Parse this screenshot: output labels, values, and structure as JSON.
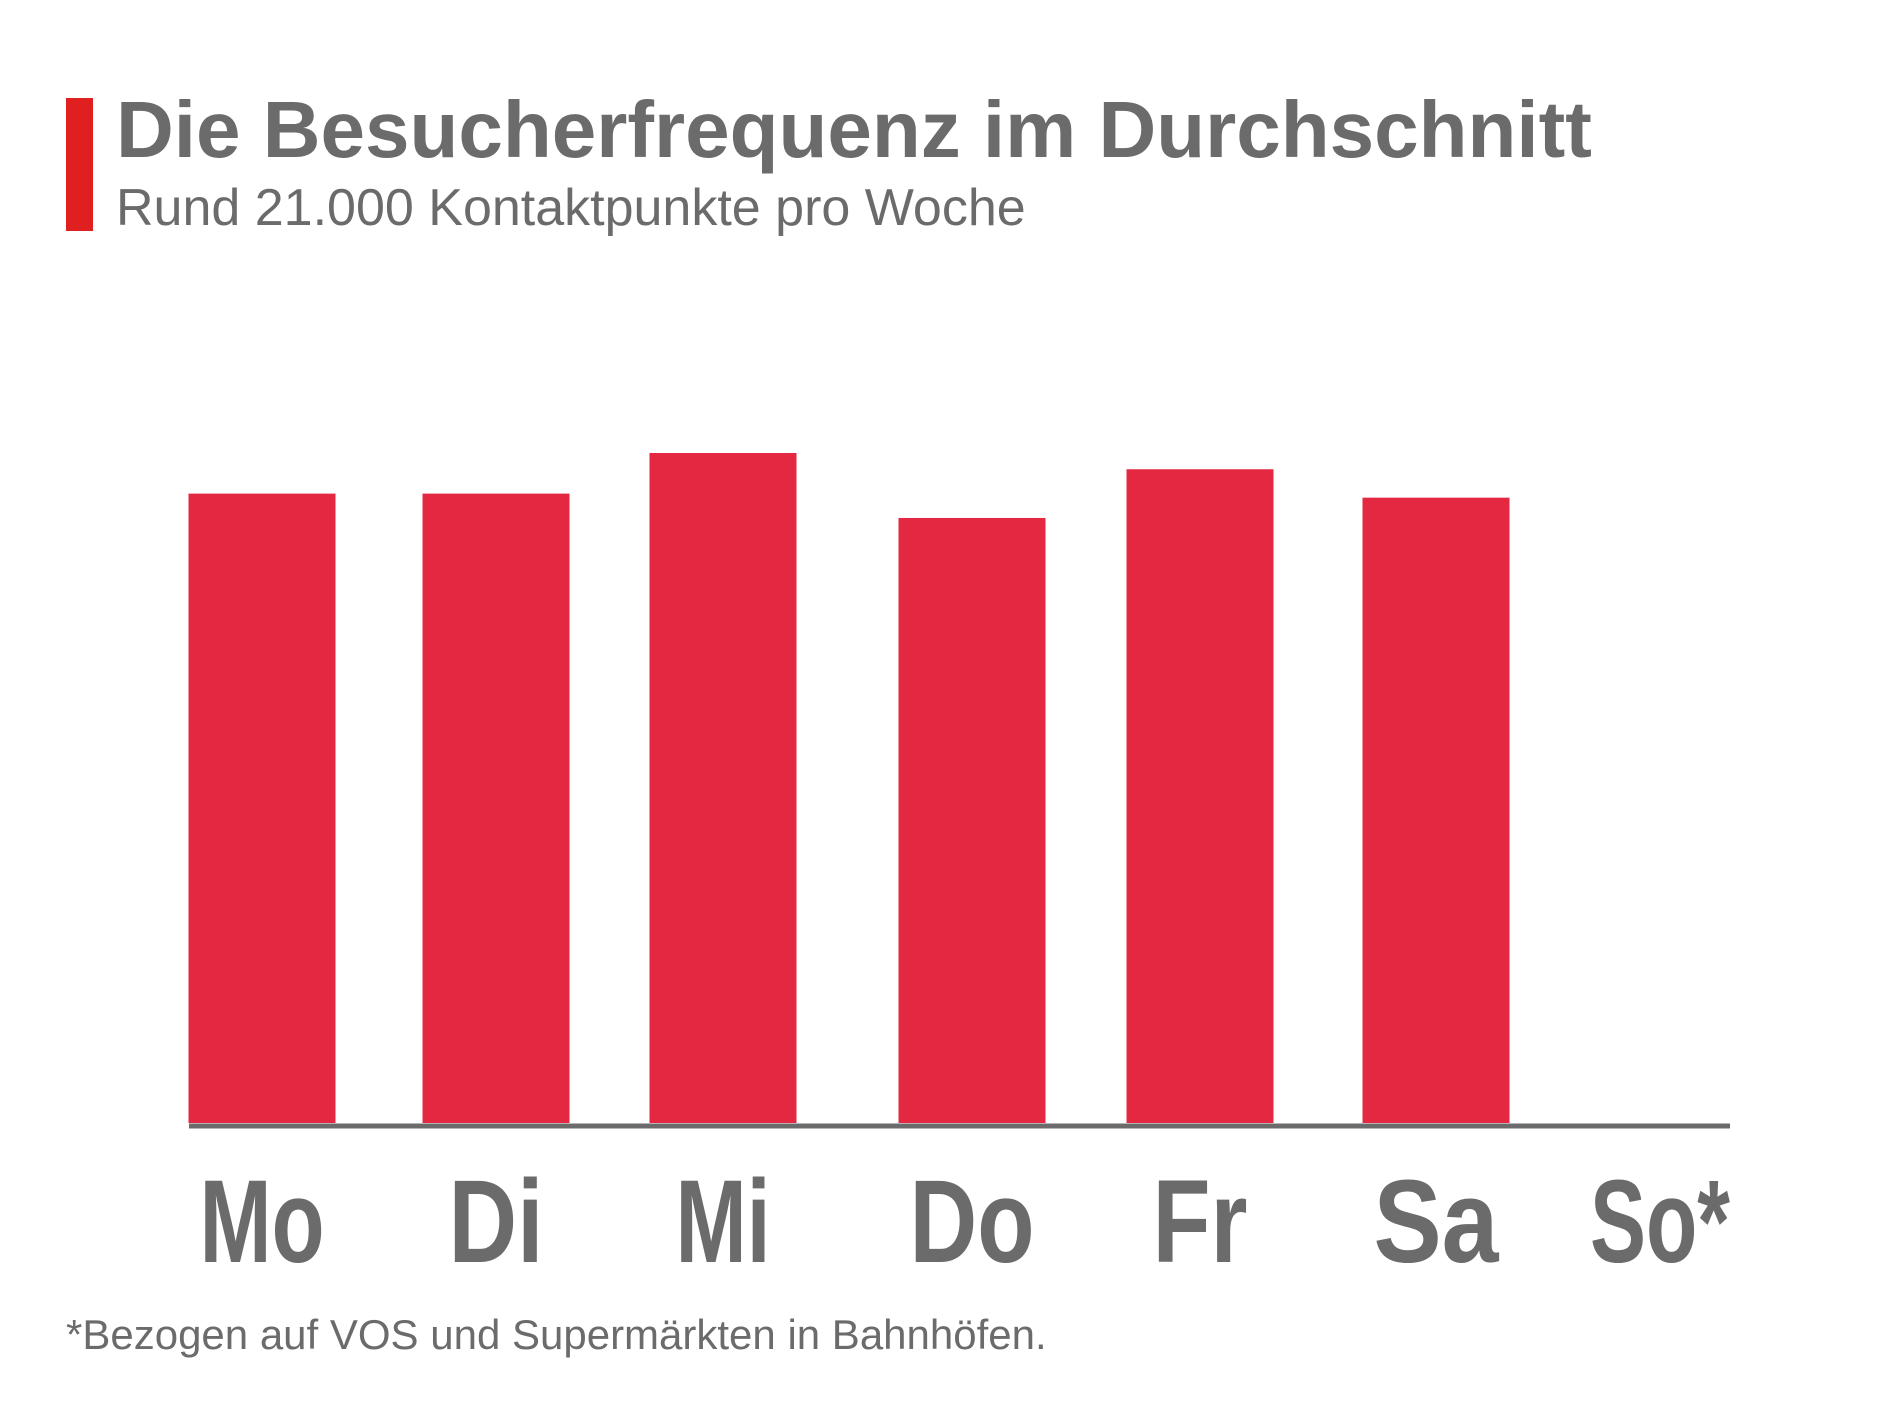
{
  "header": {
    "title": "Die Besucherfrequenz im Durchschnitt",
    "subtitle": "Rund 21.000 Kontaktpunkte pro Woche"
  },
  "footnote": "*Bezogen auf VOS und Supermärkten in Bahnhöfen.",
  "colors": {
    "accent": "#e02020",
    "bar": "#e52842",
    "text": "#6b6b6b",
    "axis": "#6b6b6b"
  },
  "chart_data": {
    "type": "bar",
    "categories": [
      "Mo",
      "Di",
      "Mi",
      "Do",
      "Fr",
      "Sa",
      "So*"
    ],
    "values": [
      3100,
      3100,
      3300,
      2980,
      3220,
      3080,
      0
    ],
    "ylim": [
      0,
      3300
    ],
    "grid": false,
    "legend": "none",
    "y_axis_shown": false
  }
}
